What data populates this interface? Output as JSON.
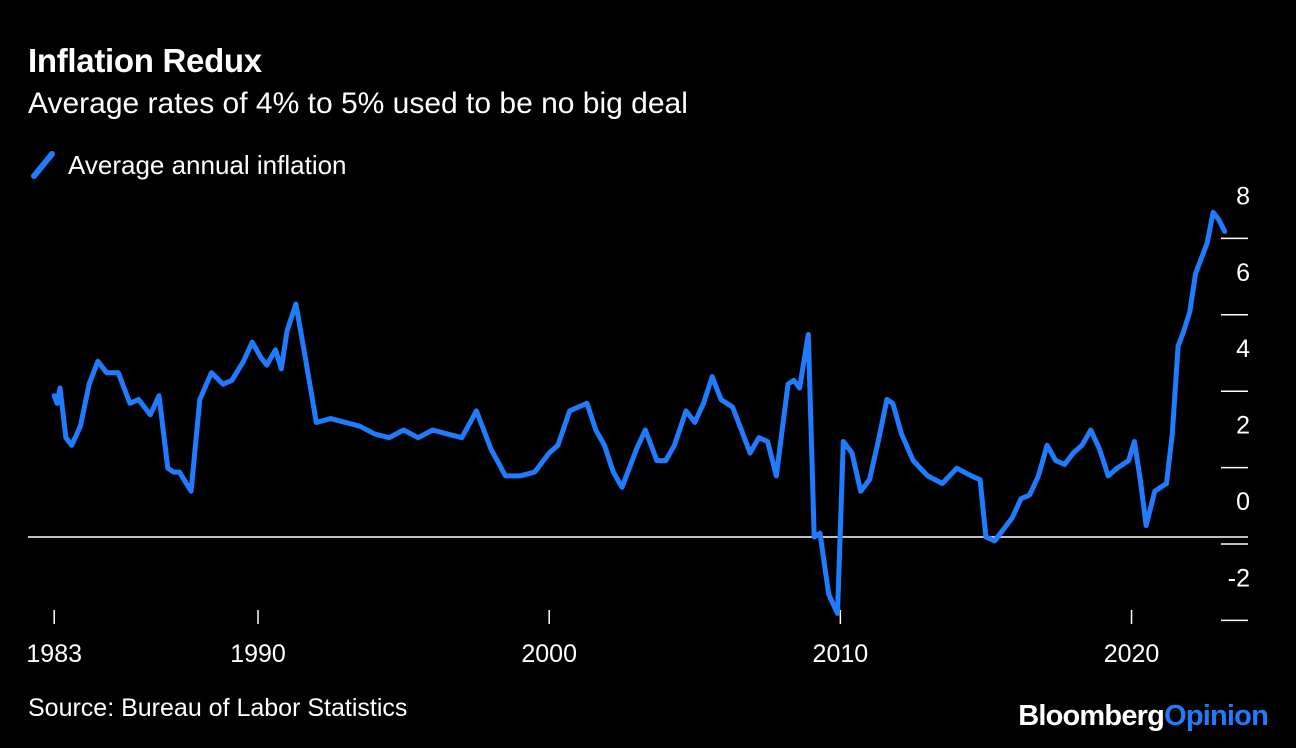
{
  "chart_data": {
    "type": "line",
    "title": "Inflation Redux",
    "subtitle": "Average rates of 4% to 5% used to be no big deal",
    "legend": [
      "Average annual inflation"
    ],
    "source": "Source: Bureau of Labor Statistics",
    "xlim": [
      1982.1,
      2024.0
    ],
    "ylim": [
      -2.7,
      8.5
    ],
    "x_ticks": [
      1983,
      1990,
      2000,
      2010,
      2020
    ],
    "x_tick_labels": [
      "1983",
      "1990",
      "2000",
      "2010",
      "2020"
    ],
    "y_ticks": [
      8,
      6,
      4,
      2,
      0,
      -2
    ],
    "y_tick_labels": [
      "8",
      "6",
      "4",
      "2",
      "0",
      "-2"
    ],
    "line_color": "#1f7cff",
    "series": [
      {
        "name": "Average annual inflation",
        "x": [
          1983.0,
          1983.1,
          1983.2,
          1983.4,
          1983.6,
          1983.9,
          1984.2,
          1984.5,
          1984.8,
          1985.2,
          1985.6,
          1985.9,
          1986.1,
          1986.3,
          1986.6,
          1986.9,
          1987.1,
          1987.3,
          1987.7,
          1988.0,
          1988.4,
          1988.8,
          1989.1,
          1989.5,
          1989.8,
          1990.1,
          1990.3,
          1990.6,
          1990.8,
          1991.0,
          1991.3,
          1991.6,
          1992.0,
          1992.5,
          1993.0,
          1993.5,
          1994.0,
          1994.5,
          1995.0,
          1995.5,
          1996.0,
          1996.5,
          1997.0,
          1997.5,
          1998.0,
          1998.5,
          1999.0,
          1999.5,
          2000.0,
          2000.3,
          2000.7,
          2001.0,
          2001.3,
          2001.6,
          2001.9,
          2002.2,
          2002.5,
          2003.0,
          2003.3,
          2003.7,
          2004.0,
          2004.3,
          2004.7,
          2005.0,
          2005.3,
          2005.6,
          2005.9,
          2006.3,
          2006.6,
          2006.9,
          2007.2,
          2007.5,
          2007.8,
          2008.2,
          2008.4,
          2008.6,
          2008.9,
          2009.1,
          2009.3,
          2009.6,
          2009.9,
          2010.1,
          2010.4,
          2010.7,
          2011.0,
          2011.3,
          2011.6,
          2011.8,
          2012.1,
          2012.5,
          2013.0,
          2013.5,
          2014.0,
          2014.5,
          2014.8,
          2015.0,
          2015.3,
          2015.6,
          2015.9,
          2016.2,
          2016.5,
          2016.8,
          2017.1,
          2017.4,
          2017.7,
          2018.0,
          2018.3,
          2018.6,
          2018.9,
          2019.2,
          2019.5,
          2019.9,
          2020.1,
          2020.3,
          2020.5,
          2020.8,
          2021.0,
          2021.2,
          2021.4,
          2021.6,
          2021.8,
          2022.0,
          2022.2,
          2022.4,
          2022.6,
          2022.8,
          2023.0,
          2023.2
        ],
        "y": [
          3.7,
          3.5,
          3.9,
          2.6,
          2.4,
          2.9,
          4.0,
          4.6,
          4.3,
          4.3,
          3.5,
          3.6,
          3.4,
          3.2,
          3.7,
          1.8,
          1.7,
          1.7,
          1.2,
          3.6,
          4.3,
          4.0,
          4.1,
          4.6,
          5.1,
          4.7,
          4.5,
          4.9,
          4.4,
          5.4,
          6.1,
          4.8,
          3.0,
          3.1,
          3.0,
          2.9,
          2.7,
          2.6,
          2.8,
          2.6,
          2.8,
          2.7,
          2.6,
          3.3,
          2.3,
          1.6,
          1.6,
          1.7,
          2.2,
          2.4,
          3.3,
          3.4,
          3.5,
          2.8,
          2.4,
          1.7,
          1.3,
          2.3,
          2.8,
          2.0,
          2.0,
          2.4,
          3.3,
          3.0,
          3.5,
          4.2,
          3.6,
          3.4,
          2.8,
          2.2,
          2.6,
          2.5,
          1.6,
          4.0,
          4.1,
          3.9,
          5.3,
          0.0,
          0.1,
          -1.5,
          -2.0,
          2.5,
          2.2,
          1.2,
          1.5,
          2.5,
          3.6,
          3.5,
          2.7,
          2.0,
          1.6,
          1.4,
          1.8,
          1.6,
          1.5,
          0.0,
          -0.1,
          0.2,
          0.5,
          1.0,
          1.1,
          1.6,
          2.4,
          2.0,
          1.9,
          2.2,
          2.4,
          2.8,
          2.3,
          1.6,
          1.8,
          2.0,
          2.5,
          1.5,
          0.3,
          1.2,
          1.3,
          1.4,
          2.7,
          5.0,
          5.4,
          5.9,
          6.9,
          7.3,
          7.7,
          8.5,
          8.3,
          8.0
        ]
      }
    ]
  },
  "brand": {
    "part1": "Bloomberg",
    "part2": "Opinion"
  }
}
